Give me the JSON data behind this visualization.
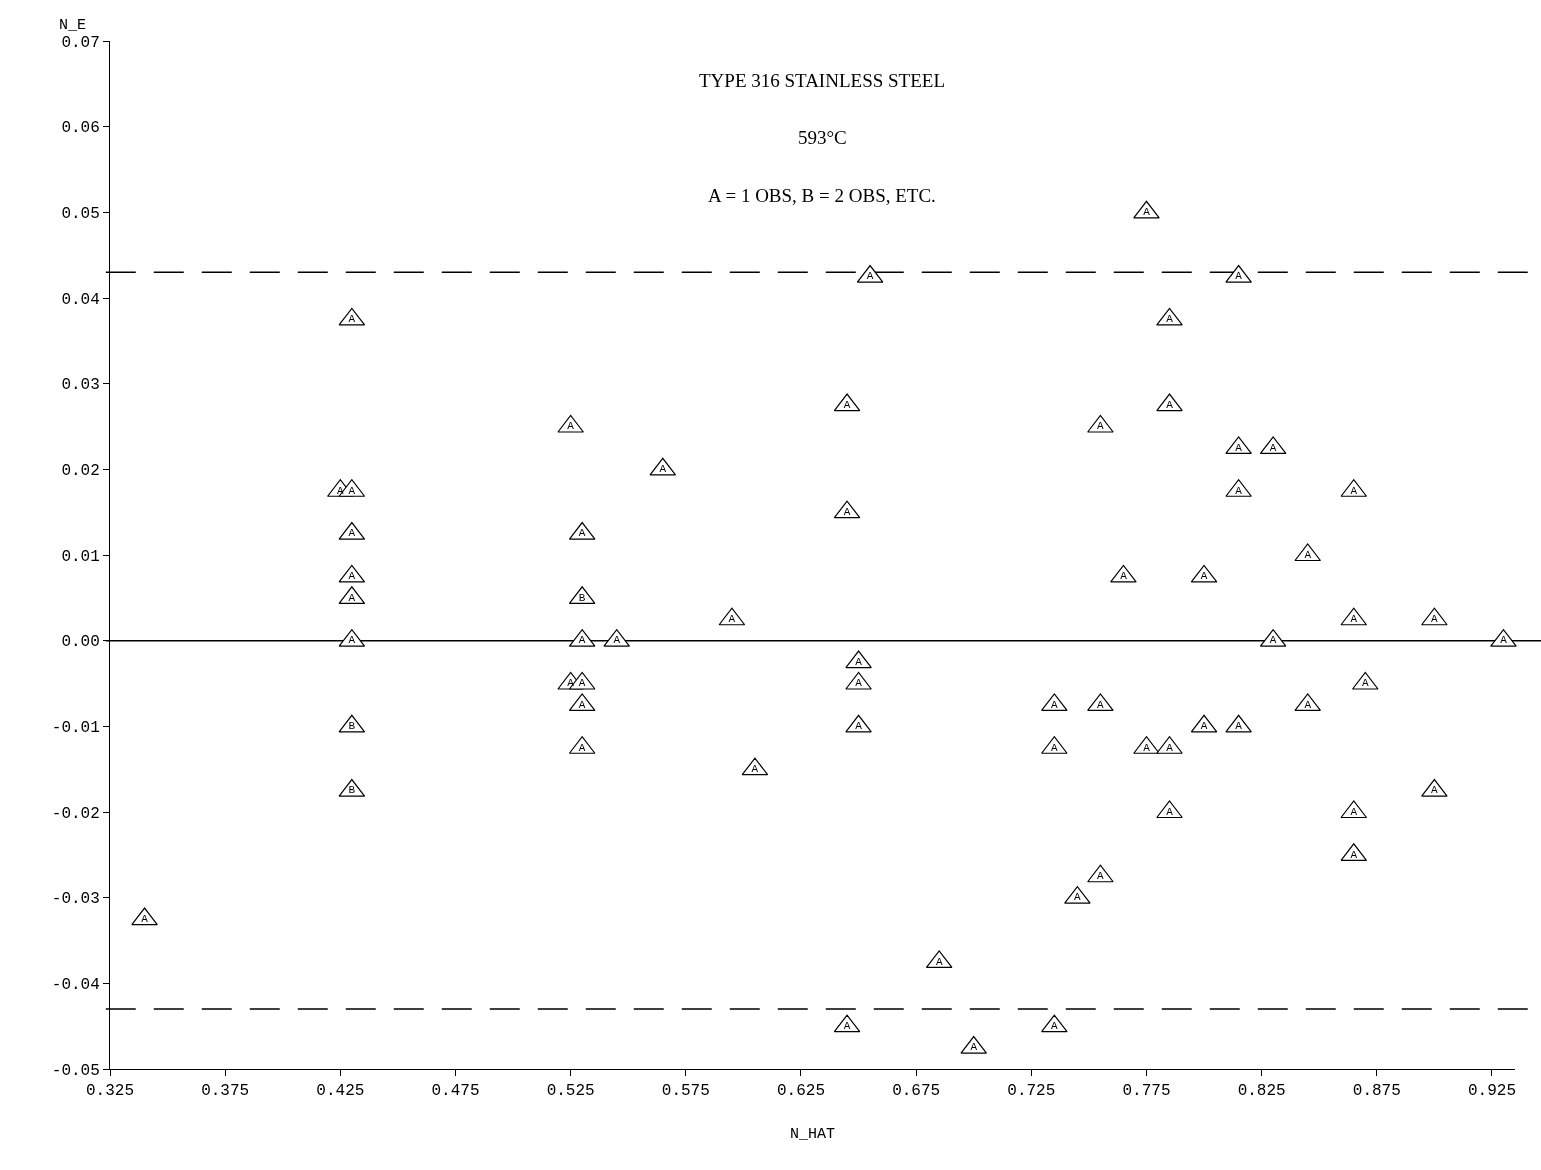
{
  "chart_data": {
    "type": "scatter",
    "title": "TYPE 316 STAINLESS STEEL",
    "subtitle": "593°C",
    "xlabel": "N_HAT",
    "ylabel": "N_E",
    "annotations": [
      "A = 1 OBS, B = 2 OBS, ETC."
    ],
    "marker": "triangle",
    "legend": false,
    "grid": false,
    "series": [
      {
        "name": "A",
        "color": "#000000",
        "x": [
          0.34,
          0.43,
          0.425,
          0.43,
          0.43,
          0.43,
          0.43,
          0.43,
          0.525,
          0.53,
          0.53,
          0.545,
          0.525,
          0.53,
          0.53,
          0.53,
          0.565,
          0.595,
          0.605,
          0.655,
          0.645,
          0.645,
          0.65,
          0.65,
          0.65,
          0.645,
          0.685,
          0.7,
          0.735,
          0.735,
          0.735,
          0.745,
          0.755,
          0.755,
          0.755,
          0.765,
          0.775,
          0.775,
          0.785,
          0.785,
          0.785,
          0.785,
          0.8,
          0.8,
          0.815,
          0.815,
          0.815,
          0.815,
          0.83,
          0.83,
          0.845,
          0.845,
          0.865,
          0.865,
          0.865,
          0.865,
          0.87,
          0.9,
          0.9,
          0.93
        ],
        "values": [
          -0.0325,
          0.0375,
          0.0175,
          0.0175,
          0.0125,
          0.0075,
          0.005,
          0,
          0.025,
          0.0125,
          0,
          0,
          -0.005,
          -0.005,
          -0.0075,
          -0.0125,
          0.02,
          0.0025,
          -0.015,
          0.0425,
          0.0275,
          0.015,
          -0.0025,
          -0.005,
          -0.01,
          -0.045,
          -0.0375,
          -0.0475,
          -0.045,
          -0.0075,
          -0.0125,
          -0.03,
          0.025,
          -0.0075,
          -0.0275,
          0.0075,
          0.05,
          -0.0125,
          0.0375,
          0.0275,
          -0.0125,
          -0.02,
          0.0075,
          -0.01,
          0.0425,
          0.0225,
          0.0175,
          -0.01,
          0.0225,
          0,
          0.01,
          -0.0075,
          0.0175,
          0.0025,
          -0.02,
          -0.025,
          -0.005,
          0.0025,
          -0.0175,
          0
        ]
      },
      {
        "name": "B",
        "color": "#000000",
        "x": [
          0.43,
          0.43,
          0.53
        ],
        "values": [
          -0.01,
          -0.0175,
          0.005
        ]
      }
    ],
    "xlim": [
      0.325,
      0.935
    ],
    "xticks": [
      0.325,
      0.375,
      0.425,
      0.475,
      0.525,
      0.575,
      0.625,
      0.675,
      0.725,
      0.775,
      0.825,
      0.875,
      0.925
    ],
    "ylim": [
      -0.05,
      0.07
    ],
    "yticks": [
      -0.05,
      -0.04,
      -0.03,
      -0.02,
      -0.01,
      {
        "value": 0,
        "label": "0.00"
      },
      0.01,
      0.02,
      0.03,
      0.04,
      0.05,
      0.06,
      0.07
    ],
    "ref_lines": [
      {
        "axis": "y",
        "value": 0,
        "line_style": "solid",
        "color": "#000000"
      },
      {
        "axis": "y",
        "value": 0.043,
        "line_style": "dashed",
        "color": "#000000"
      },
      {
        "axis": "y",
        "value": -0.043,
        "line_style": "dashed",
        "color": "#000000"
      }
    ]
  }
}
